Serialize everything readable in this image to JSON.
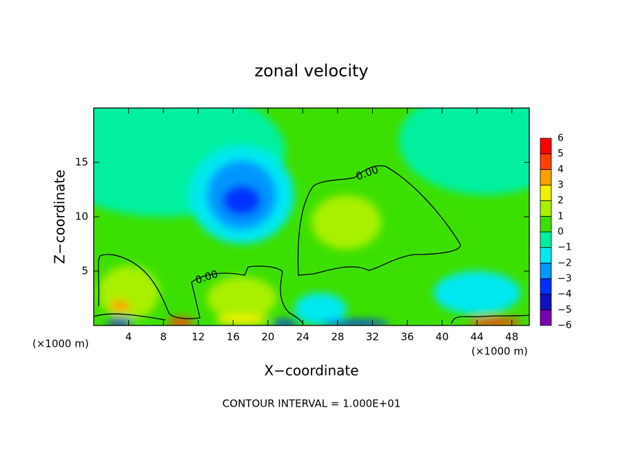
{
  "chart_data": {
    "type": "contour",
    "title": "zonal velocity",
    "x_label": "X−coordinate",
    "y_label": "Z−coordinate",
    "x_unit_label": "(×1000 m)",
    "x_unit_label_right": "(×1000 m)",
    "footnote": "CONTOUR INTERVAL = 1.000E+01",
    "xlim": [
      0,
      50
    ],
    "ylim": [
      0,
      20
    ],
    "xticks": [
      4,
      8,
      12,
      16,
      20,
      24,
      28,
      32,
      36,
      40,
      44,
      48
    ],
    "yticks": [
      5,
      10,
      15
    ],
    "colorbar_ticks": [
      {
        "value": -6,
        "label": "−6"
      },
      {
        "value": -5,
        "label": "−5"
      },
      {
        "value": -4,
        "label": "−4"
      },
      {
        "value": -3,
        "label": "−3"
      },
      {
        "value": -2,
        "label": "−2"
      },
      {
        "value": -1,
        "label": "−1"
      },
      0,
      1,
      2,
      3,
      4,
      5,
      6
    ],
    "colors": [
      "#7a00b4",
      "#1010c0",
      "#0030ff",
      "#0096ff",
      "#00e8f0",
      "#00f0a0",
      "#3ce000",
      "#a8f000",
      "#f0f000",
      "#ffa000",
      "#ff4000",
      "#ff0000"
    ],
    "background_value": 0.5,
    "contour_labels": [
      "0.00",
      "0.00"
    ],
    "regions": [
      {
        "x": 8,
        "z": 16,
        "rx": 14,
        "rz": 6,
        "value": -0.5
      },
      {
        "x": 45,
        "z": 17,
        "rx": 10,
        "rz": 5,
        "value": -0.5
      },
      {
        "x": 17,
        "z": 12,
        "rx": 6,
        "rz": 4.5,
        "value": -1.5
      },
      {
        "x": 17,
        "z": 12,
        "rx": 4,
        "rz": 3.2,
        "value": -2.5
      },
      {
        "x": 17,
        "z": 11.5,
        "rx": 2.2,
        "rz": 1.4,
        "value": -3.2
      },
      {
        "x": 29,
        "z": 9.5,
        "rx": 4,
        "rz": 2.5,
        "value": 1.3
      },
      {
        "x": 4,
        "z": 3,
        "rx": 3.5,
        "rz": 2.5,
        "value": 1.2
      },
      {
        "x": 17,
        "z": 2.5,
        "rx": 4,
        "rz": 2,
        "value": 1.3
      },
      {
        "x": 26,
        "z": 1.5,
        "rx": 3,
        "rz": 1.5,
        "value": -1.5
      },
      {
        "x": 44,
        "z": 3,
        "rx": 5,
        "rz": 2,
        "value": -1.5
      },
      {
        "x": 17,
        "z": 0.5,
        "rx": 3,
        "rz": 0.5,
        "value": 2.5
      },
      {
        "x": 10,
        "z": 0.3,
        "rx": 1.5,
        "rz": 0.4,
        "value": 4.5
      },
      {
        "x": 3,
        "z": 0.3,
        "rx": 1.5,
        "rz": 0.4,
        "value": -4.5
      },
      {
        "x": 3,
        "z": 1.8,
        "rx": 1.2,
        "rz": 0.5,
        "value": 3.5
      },
      {
        "x": 46,
        "z": 0.3,
        "rx": 3,
        "rz": 0.4,
        "value": 4.5
      },
      {
        "x": 30,
        "z": 0.2,
        "rx": 4,
        "rz": 0.3,
        "value": -3.5
      },
      {
        "x": 22,
        "z": 0.2,
        "rx": 1.5,
        "rz": 0.3,
        "value": -3.5
      }
    ]
  }
}
